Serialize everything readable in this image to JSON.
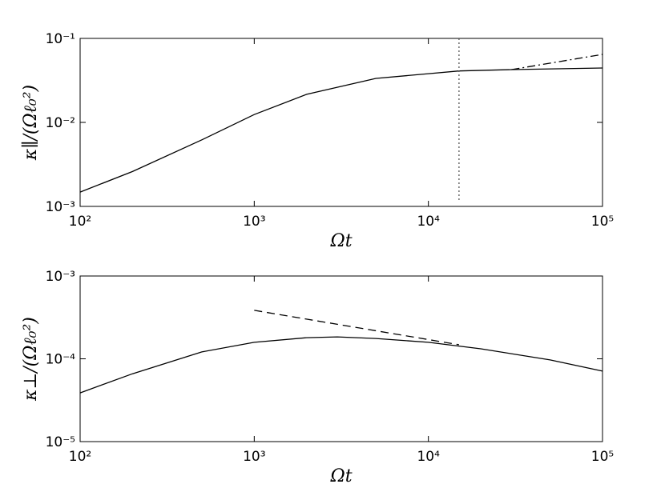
{
  "chart_data": [
    {
      "type": "line",
      "xlabel": "Ωt",
      "ylabel": "κ∥/(Ωℓ₀²)",
      "xscale": "log",
      "yscale": "log",
      "xlim": [
        100,
        100000
      ],
      "ylim": [
        0.001,
        0.1
      ],
      "xticks": [
        {
          "value": 100,
          "label": "10²"
        },
        {
          "value": 1000,
          "label": "10³"
        },
        {
          "value": 10000,
          "label": "10⁴"
        },
        {
          "value": 100000,
          "label": "10⁵"
        }
      ],
      "yticks": [
        {
          "value": 0.001,
          "label": "10⁻³"
        },
        {
          "value": 0.01,
          "label": "10⁻²"
        },
        {
          "value": 0.1,
          "label": "10⁻¹"
        }
      ],
      "series": [
        {
          "color": "#000000",
          "dash": "solid",
          "x": [
            100,
            200,
            500,
            1000,
            2000,
            5000,
            10000,
            15000,
            30000,
            100000
          ],
          "values": [
            0.00148,
            0.0026,
            0.0062,
            0.0124,
            0.0216,
            0.0334,
            0.038,
            0.041,
            0.0425,
            0.0444
          ]
        },
        {
          "color": "#000000",
          "dash": "dashdot",
          "x": [
            30000,
            100000
          ],
          "values": [
            0.0425,
            0.0645
          ]
        },
        {
          "color": "#555555",
          "dash": "dotted",
          "x": [
            15000,
            15000
          ],
          "values": [
            0.1,
            0.00114
          ]
        }
      ]
    },
    {
      "type": "line",
      "xlabel": "Ωt",
      "ylabel": "κ⊥/(Ωℓ₀²)",
      "xscale": "log",
      "yscale": "log",
      "xlim": [
        100,
        100000
      ],
      "ylim": [
        1e-05,
        0.001
      ],
      "xticks": [
        {
          "value": 100,
          "label": "10²"
        },
        {
          "value": 1000,
          "label": "10³"
        },
        {
          "value": 10000,
          "label": "10⁴"
        },
        {
          "value": 100000,
          "label": "10⁵"
        }
      ],
      "yticks": [
        {
          "value": 1e-05,
          "label": "10⁻⁵"
        },
        {
          "value": 0.0001,
          "label": "10⁻⁴"
        },
        {
          "value": 0.001,
          "label": "10⁻³"
        }
      ],
      "series": [
        {
          "color": "#000000",
          "dash": "solid",
          "x": [
            100,
            200,
            500,
            1000,
            2000,
            3000,
            5000,
            10000,
            20000,
            50000,
            100000
          ],
          "values": [
            3.88e-05,
            6.6e-05,
            0.000121,
            0.000158,
            0.00018,
            0.000184,
            0.000176,
            0.000158,
            0.000132,
            9.7e-05,
            7.1e-05
          ]
        },
        {
          "color": "#000000",
          "dash": "dashed",
          "x": [
            1000,
            15000
          ],
          "values": [
            0.000385,
            0.000148
          ]
        }
      ]
    }
  ]
}
